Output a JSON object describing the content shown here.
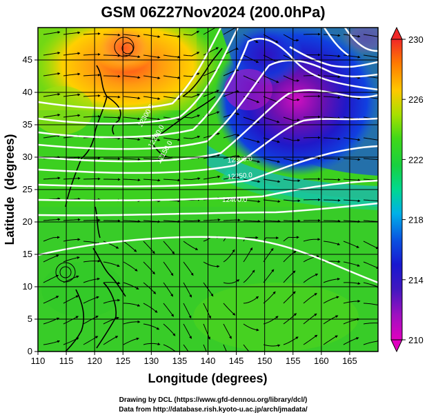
{
  "chart_data": {
    "type": "heatmap",
    "title": "GSM 06Z27Nov2024 (200.0hPa)",
    "xlabel": "Longitude (degrees)",
    "ylabel": "Latitude  (degrees)",
    "xlim": [
      110,
      170
    ],
    "ylim": [
      0,
      50
    ],
    "xticks": [
      "110",
      "115",
      "120",
      "125",
      "130",
      "135",
      "140",
      "145",
      "150",
      "155",
      "160",
      "165"
    ],
    "yticks": [
      "0",
      "5",
      "10",
      "15",
      "20",
      "25",
      "30",
      "35",
      "40",
      "45"
    ],
    "colorbar": {
      "min": 210,
      "max": 230,
      "tick_labels": [
        "210",
        "214",
        "218",
        "222",
        "226",
        "230"
      ],
      "colors": [
        "#e000c0",
        "#6010b0",
        "#1818d0",
        "#0a6ae8",
        "#00c8e8",
        "#18d870",
        "#22cc22",
        "#50d810",
        "#a8e000",
        "#ffc800",
        "#ff8c00",
        "#ff4500",
        "#f02828"
      ]
    },
    "contour_labels": [
      "12300.0",
      "12200.0",
      "12150.0",
      "12250.0",
      "12400.0"
    ],
    "credits": [
      "Drawing by DCL (https://www.gfd-dennou.org/library/dcl/)",
      "Data from http://database.rish.kyoto-u.ac.jp/arch/jmadata/"
    ]
  }
}
